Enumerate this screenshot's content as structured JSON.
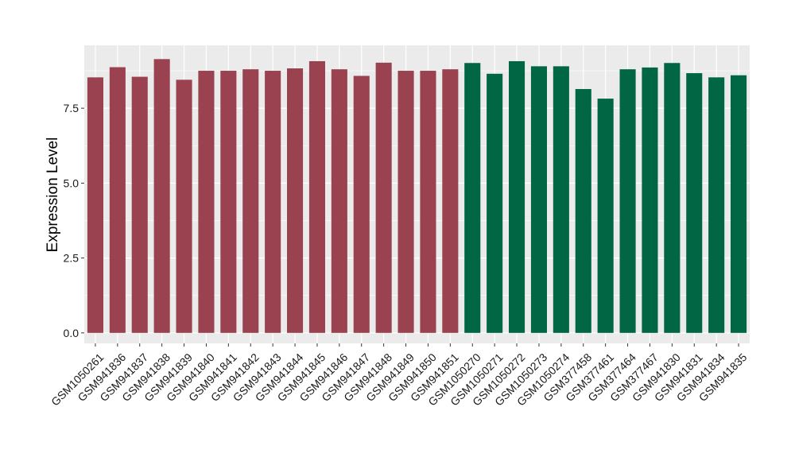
{
  "chart_data": {
    "type": "bar",
    "title": "",
    "xlabel": "",
    "ylabel": "Expression Level",
    "ylim": [
      -0.35,
      9.6
    ],
    "yticks": [
      0.0,
      2.5,
      5.0,
      7.5
    ],
    "ytick_labels": [
      "0.0",
      "2.5",
      "5.0",
      "7.5"
    ],
    "grid": true,
    "legend": "none",
    "categories": [
      "GSM1050261",
      "GSM941836",
      "GSM941837",
      "GSM941838",
      "GSM941839",
      "GSM941840",
      "GSM941841",
      "GSM941842",
      "GSM941843",
      "GSM941844",
      "GSM941845",
      "GSM941846",
      "GSM941847",
      "GSM941848",
      "GSM941849",
      "GSM941850",
      "GSM941851",
      "GSM1050270",
      "GSM1050271",
      "GSM1050272",
      "GSM1050273",
      "GSM1050274",
      "GSM377458",
      "GSM377461",
      "GSM377464",
      "GSM377467",
      "GSM941830",
      "GSM941831",
      "GSM941834",
      "GSM941835"
    ],
    "values": [
      8.53,
      8.87,
      8.55,
      9.14,
      8.45,
      8.75,
      8.75,
      8.8,
      8.75,
      8.83,
      9.07,
      8.8,
      8.58,
      9.02,
      8.75,
      8.75,
      8.8,
      9.01,
      8.65,
      9.07,
      8.9,
      8.9,
      8.14,
      7.82,
      8.8,
      8.86,
      9.01,
      8.67,
      8.53,
      8.6
    ],
    "bar_colors": [
      "#9b4250",
      "#9b4250",
      "#9b4250",
      "#9b4250",
      "#9b4250",
      "#9b4250",
      "#9b4250",
      "#9b4250",
      "#9b4250",
      "#9b4250",
      "#9b4250",
      "#9b4250",
      "#9b4250",
      "#9b4250",
      "#9b4250",
      "#9b4250",
      "#9b4250",
      "#006644",
      "#006644",
      "#006644",
      "#006644",
      "#006644",
      "#006644",
      "#006644",
      "#006644",
      "#006644",
      "#006644",
      "#006644",
      "#006644",
      "#006644"
    ],
    "panel_background": "#ebebeb",
    "grid_color": "#ffffff"
  }
}
